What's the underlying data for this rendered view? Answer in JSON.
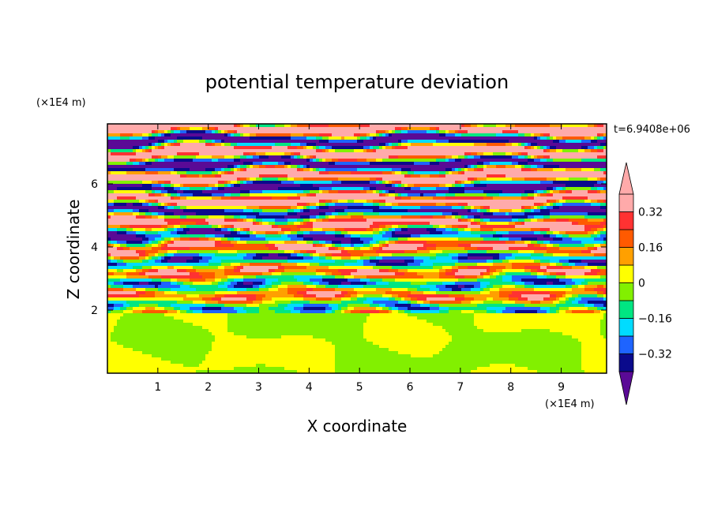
{
  "chart_data": {
    "type": "heatmap",
    "title": "potential temperature deviation",
    "xlabel": "X coordinate",
    "ylabel": "Z coordinate",
    "x_unit": "(×1E4 m)",
    "y_unit": "(×1E4 m)",
    "time_label": "t=6.9408e+06",
    "xlim": [
      0,
      9.9
    ],
    "ylim": [
      0,
      7.9
    ],
    "x_ticks": [
      1,
      2,
      3,
      4,
      5,
      6,
      7,
      8,
      9
    ],
    "y_ticks": [
      2,
      4,
      6
    ],
    "colorbar": {
      "levels": [
        -0.4,
        -0.32,
        -0.24,
        -0.16,
        -0.08,
        0,
        0.08,
        0.16,
        0.24,
        0.32,
        0.4
      ],
      "labels": [
        "0.32",
        "0.16",
        "0",
        "−0.16",
        "−0.32"
      ],
      "label_values": [
        0.32,
        0.16,
        0,
        -0.16,
        -0.32
      ],
      "colors": [
        "#5a0a96",
        "#0a0a8c",
        "#1e64ff",
        "#00dcff",
        "#00e682",
        "#82f000",
        "#ffff00",
        "#ffa000",
        "#ff5a00",
        "#ff3232",
        "#ffaaaa"
      ],
      "extend": "both"
    }
  }
}
